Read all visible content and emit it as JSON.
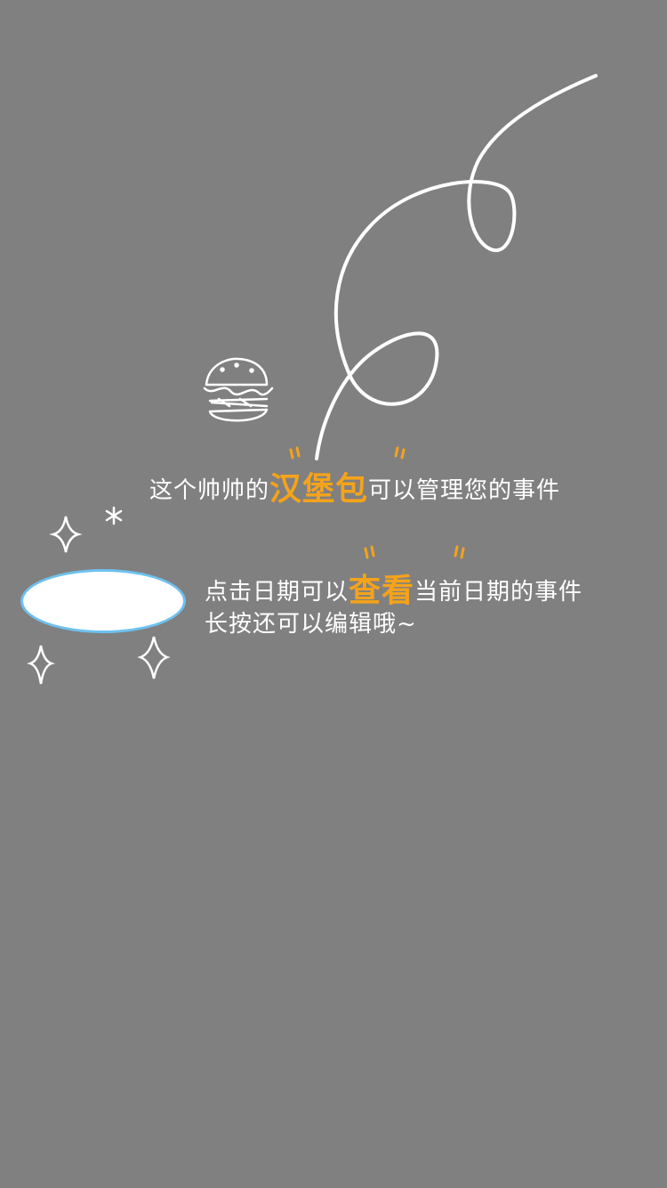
{
  "guide": {
    "hint_1": {
      "prefix": "这个帅帅的",
      "highlight": "汉堡包",
      "suffix": "可以管理您的事件"
    },
    "hint_2": {
      "prefix": "点击日期可以",
      "highlight": "查看",
      "suffix": "当前日期的事件",
      "line2": "长按还可以编辑哦~"
    },
    "icons": {
      "burger": "burger-icon",
      "sparkle": "sparkle-icon",
      "asterisk": "asterisk-icon"
    },
    "colors": {
      "overlay": "#808080",
      "text": "#ffffff",
      "highlight": "#f5a31a",
      "spot_border": "#6ec1f0",
      "spot_fill": "#ffffff"
    }
  }
}
